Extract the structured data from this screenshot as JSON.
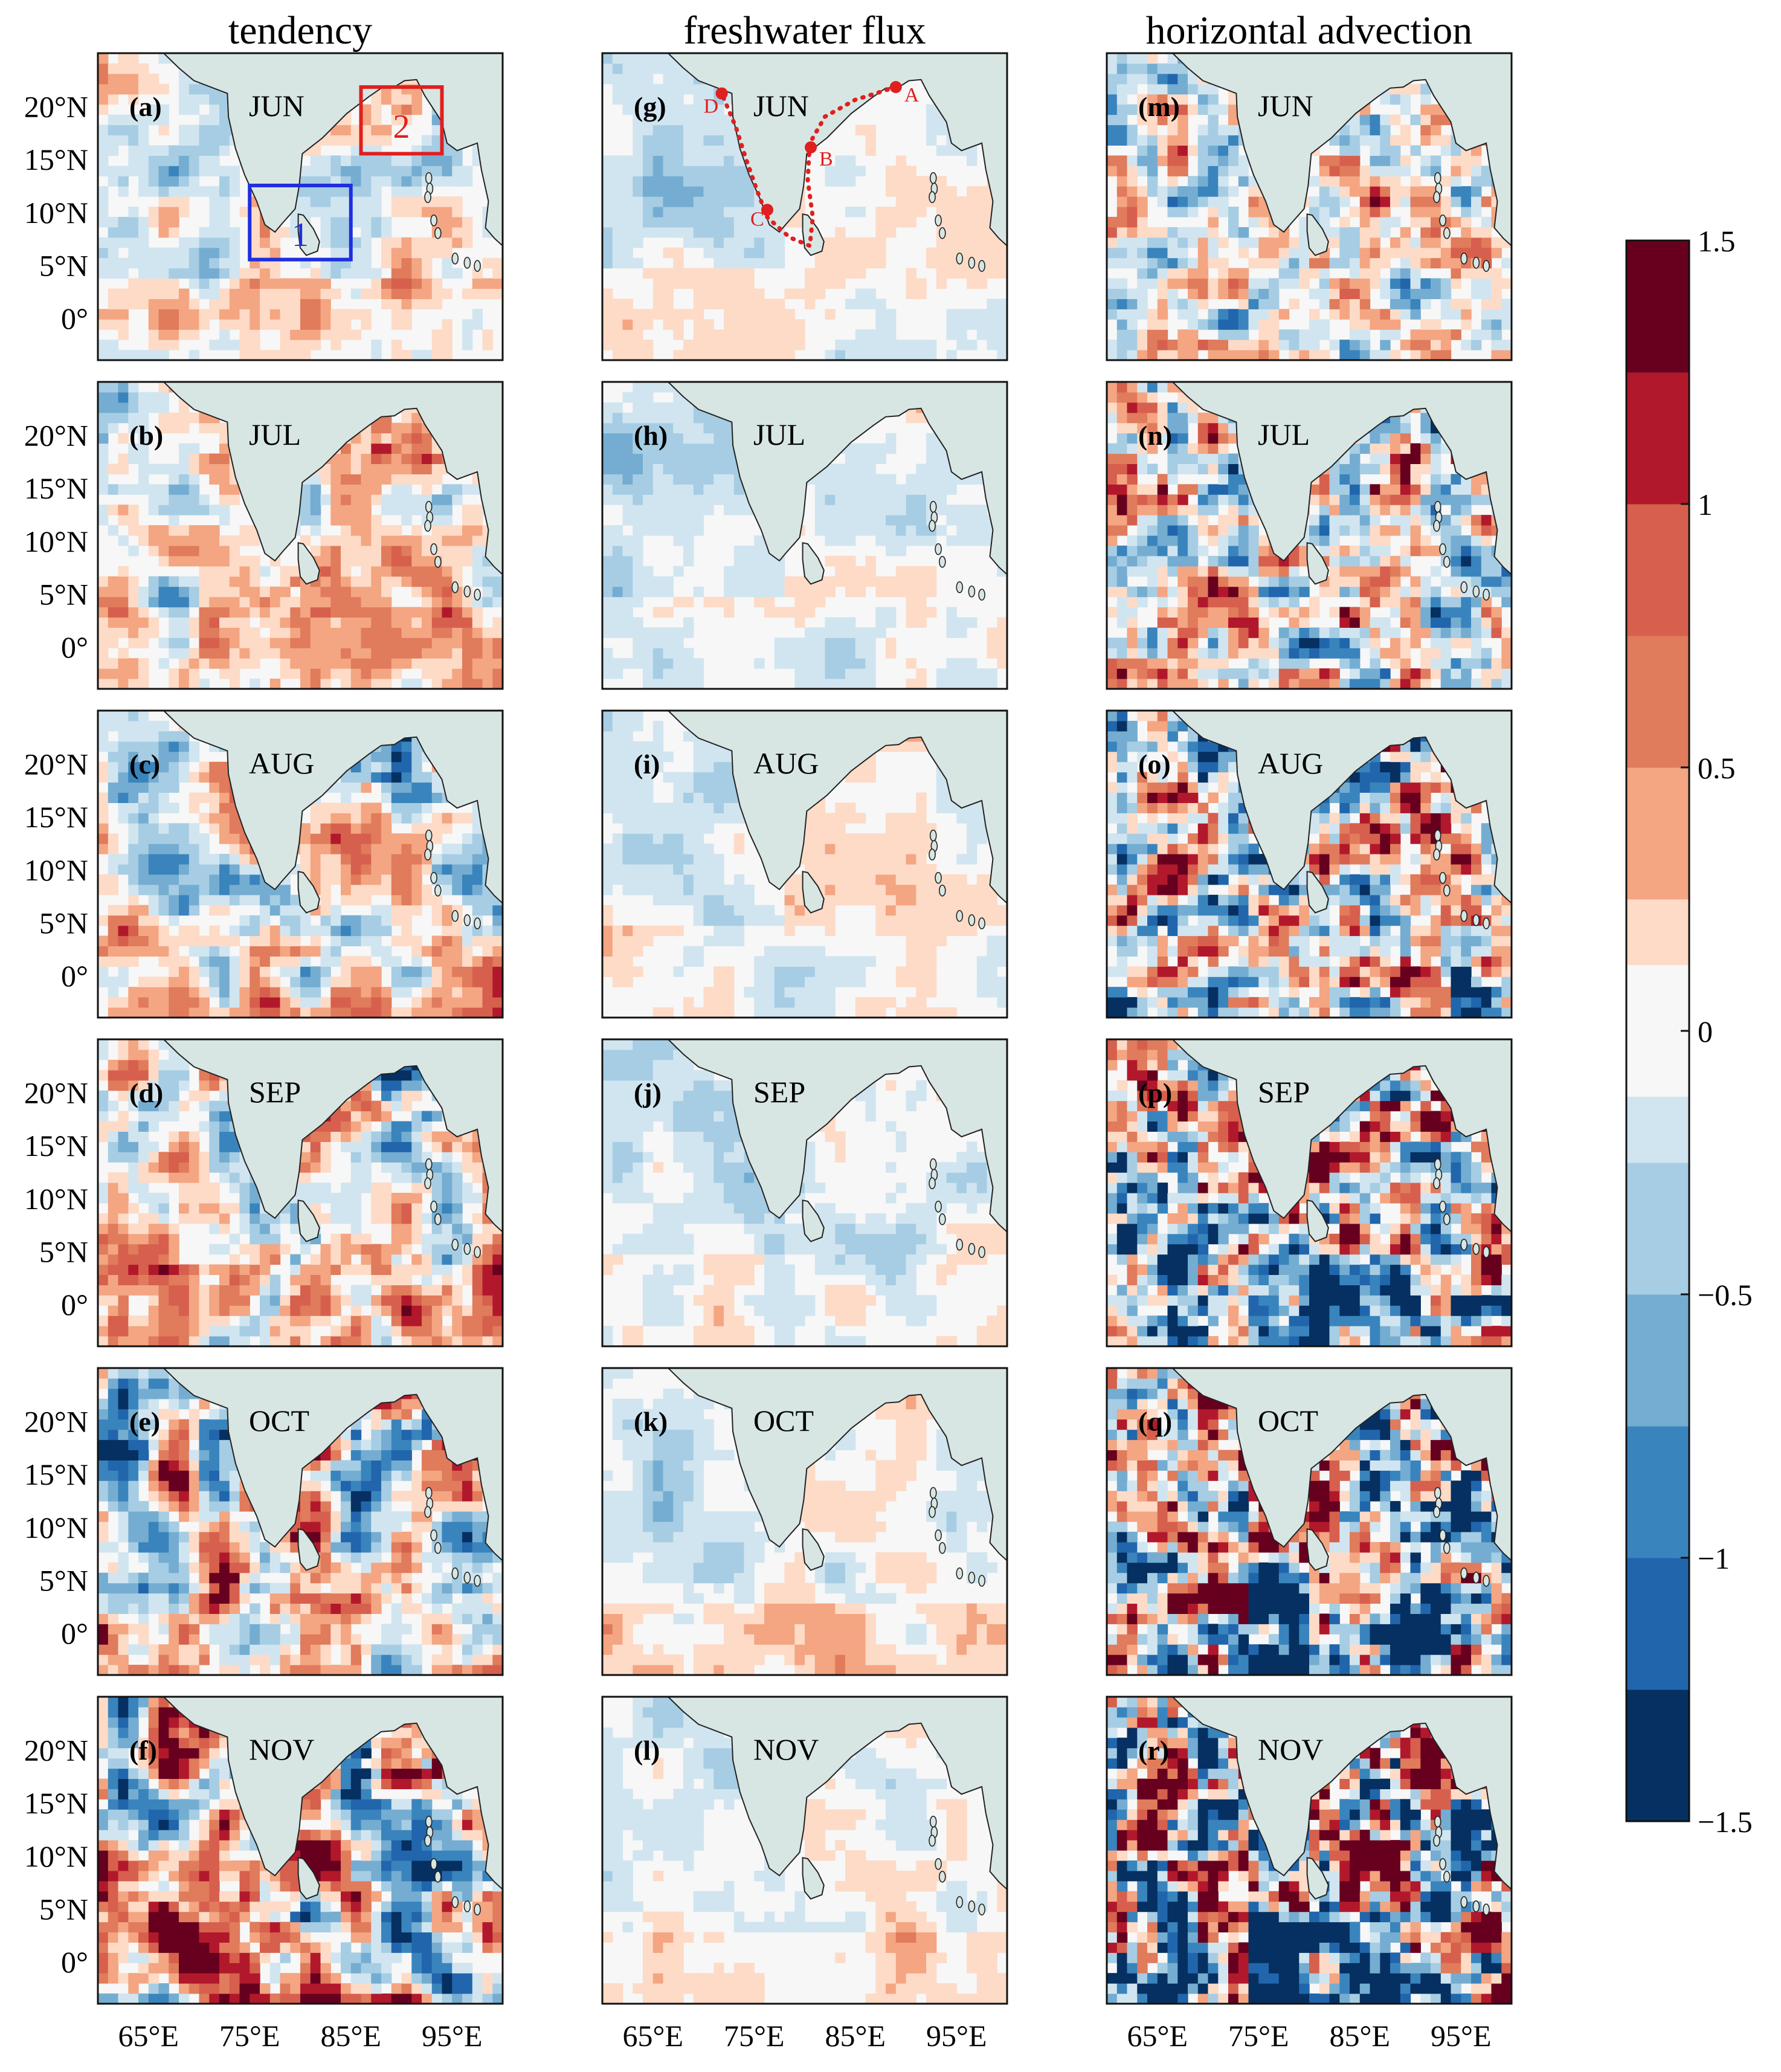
{
  "figure": {
    "columns": [
      {
        "title": "tendency",
        "panels": [
          {
            "id": "(a)",
            "month": "JUN"
          },
          {
            "id": "(b)",
            "month": "JUL"
          },
          {
            "id": "(c)",
            "month": "AUG"
          },
          {
            "id": "(d)",
            "month": "SEP"
          },
          {
            "id": "(e)",
            "month": "OCT"
          },
          {
            "id": "(f)",
            "month": "NOV"
          }
        ]
      },
      {
        "title": "freshwater flux",
        "panels": [
          {
            "id": "(g)",
            "month": "JUN"
          },
          {
            "id": "(h)",
            "month": "JUL"
          },
          {
            "id": "(i)",
            "month": "AUG"
          },
          {
            "id": "(j)",
            "month": "SEP"
          },
          {
            "id": "(k)",
            "month": "OCT"
          },
          {
            "id": "(l)",
            "month": "NOV"
          }
        ]
      },
      {
        "title": "horizontal advection",
        "panels": [
          {
            "id": "(m)",
            "month": "JUN"
          },
          {
            "id": "(n)",
            "month": "JUL"
          },
          {
            "id": "(o)",
            "month": "AUG"
          },
          {
            "id": "(p)",
            "month": "SEP"
          },
          {
            "id": "(q)",
            "month": "OCT"
          },
          {
            "id": "(r)",
            "month": "NOV"
          }
        ]
      }
    ],
    "annotations": {
      "boxes": [
        {
          "label": "1",
          "color": "#1f2ee0"
        },
        {
          "label": "2",
          "color": "#e01f1f"
        }
      ],
      "section_points": [
        "A",
        "B",
        "C",
        "D"
      ],
      "section_color": "#e01f1f"
    }
  },
  "chart_data": {
    "type": "heatmap",
    "title": "",
    "xlabel": "",
    "ylabel": "",
    "x_ticks": [
      "65°E",
      "75°E",
      "85°E",
      "95°E"
    ],
    "y_ticks": [
      "20°N",
      "15°N",
      "10°N",
      "5°N",
      "0°"
    ],
    "x_tick_values": [
      65,
      75,
      85,
      95
    ],
    "y_tick_values": [
      20,
      15,
      10,
      5,
      0
    ],
    "xlim": [
      60,
      100
    ],
    "ylim": [
      -4,
      25
    ],
    "land_color": "#d8e6e3",
    "colorbar": {
      "range": [
        -1.5,
        1.5
      ],
      "levels": [
        -1.5,
        -1.25,
        -1,
        -0.75,
        -0.5,
        -0.25,
        0,
        0.25,
        0.5,
        0.75,
        1,
        1.25,
        1.5
      ],
      "tick_labels": [
        "1.5",
        "1",
        "0.5",
        "0",
        "−0.5",
        "−1",
        "−1.5"
      ],
      "tick_values": [
        1.5,
        1,
        0.5,
        0,
        -0.5,
        -1,
        -1.5
      ],
      "colors": [
        "#053061",
        "#2166ac",
        "#3a84bd",
        "#74add1",
        "#a6cde3",
        "#d1e5f0",
        "#f7f7f7",
        "#fddbc7",
        "#f4a582",
        "#e07b5c",
        "#d6604d",
        "#b2182b",
        "#67001f"
      ]
    }
  }
}
